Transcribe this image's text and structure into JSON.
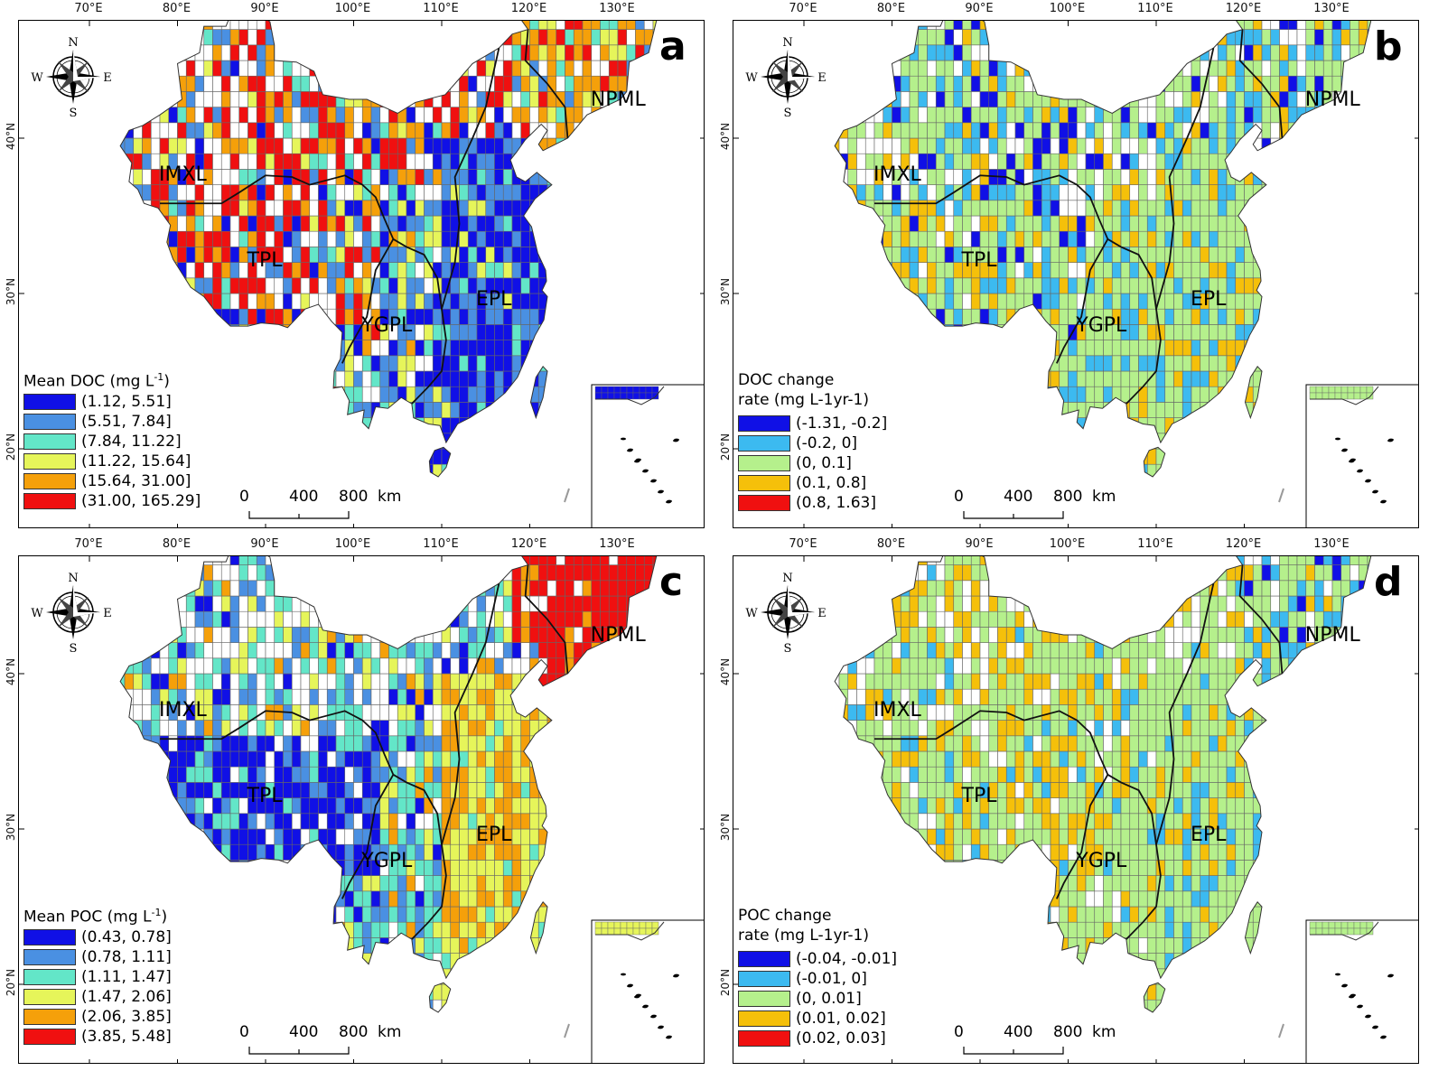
{
  "lon_ticks": [
    "70°E",
    "80°E",
    "90°E",
    "100°E",
    "110°E",
    "120°E",
    "130°E"
  ],
  "lat_ticks": [
    "40°N",
    "30°N",
    "20°N"
  ],
  "compass": {
    "n": "N",
    "s": "S",
    "e": "E",
    "w": "W"
  },
  "scale_bar": {
    "labels": [
      "0",
      "400",
      "800"
    ],
    "unit": "km"
  },
  "regions": {
    "imxl": "IMXL",
    "tpl": "TPL",
    "ygpl": "YGPL",
    "epl": "EPL",
    "npml": "NPML"
  },
  "panels": [
    {
      "letter": "a",
      "legend_title_1": "Mean DOC (mg L",
      "legend_title_sup": "-1",
      "legend_title_2": ")",
      "legend_title_line2": "",
      "items": [
        "(1.12, 5.51]",
        "(5.51, 7.84]",
        "(7.84, 11.22]",
        "(11.22, 15.64]",
        "(15.64, 31.00]",
        "(31.00, 165.29]"
      ],
      "colors": [
        "#1010e6",
        "#4a90e2",
        "#63e6c8",
        "#e6f55a",
        "#f5a00a",
        "#f01010"
      ]
    },
    {
      "letter": "b",
      "legend_title_1": "DOC change",
      "legend_title_line2": "rate (mg L-1yr-1)",
      "items": [
        "(-1.31, -0.2]",
        "(-0.2, 0]",
        "(0, 0.1]",
        "(0.1, 0.8]",
        "(0.8, 1.63]"
      ],
      "colors": [
        "#1010e6",
        "#3cbaf0",
        "#b5f08c",
        "#f5c00a",
        "#f01010"
      ]
    },
    {
      "letter": "c",
      "legend_title_1": "Mean POC (mg L",
      "legend_title_sup": "-1",
      "legend_title_2": ")",
      "legend_title_line2": "",
      "items": [
        "(0.43, 0.78]",
        "(0.78, 1.11]",
        "(1.11, 1.47]",
        "(1.47, 2.06]",
        "(2.06, 3.85]",
        "(3.85, 5.48]"
      ],
      "colors": [
        "#1010e6",
        "#4a90e2",
        "#63e6c8",
        "#e6f55a",
        "#f5a00a",
        "#f01010"
      ]
    },
    {
      "letter": "d",
      "legend_title_1": "POC change",
      "legend_title_line2": "rate (mg L-1yr-1)",
      "items": [
        "(-0.04, -0.01]",
        "(-0.01, 0]",
        "(0, 0.01]",
        "(0.01, 0.02]",
        "(0.02, 0.03]"
      ],
      "colors": [
        "#1010e6",
        "#3cbaf0",
        "#b5f08c",
        "#f5c00a",
        "#f01010"
      ]
    }
  ]
}
